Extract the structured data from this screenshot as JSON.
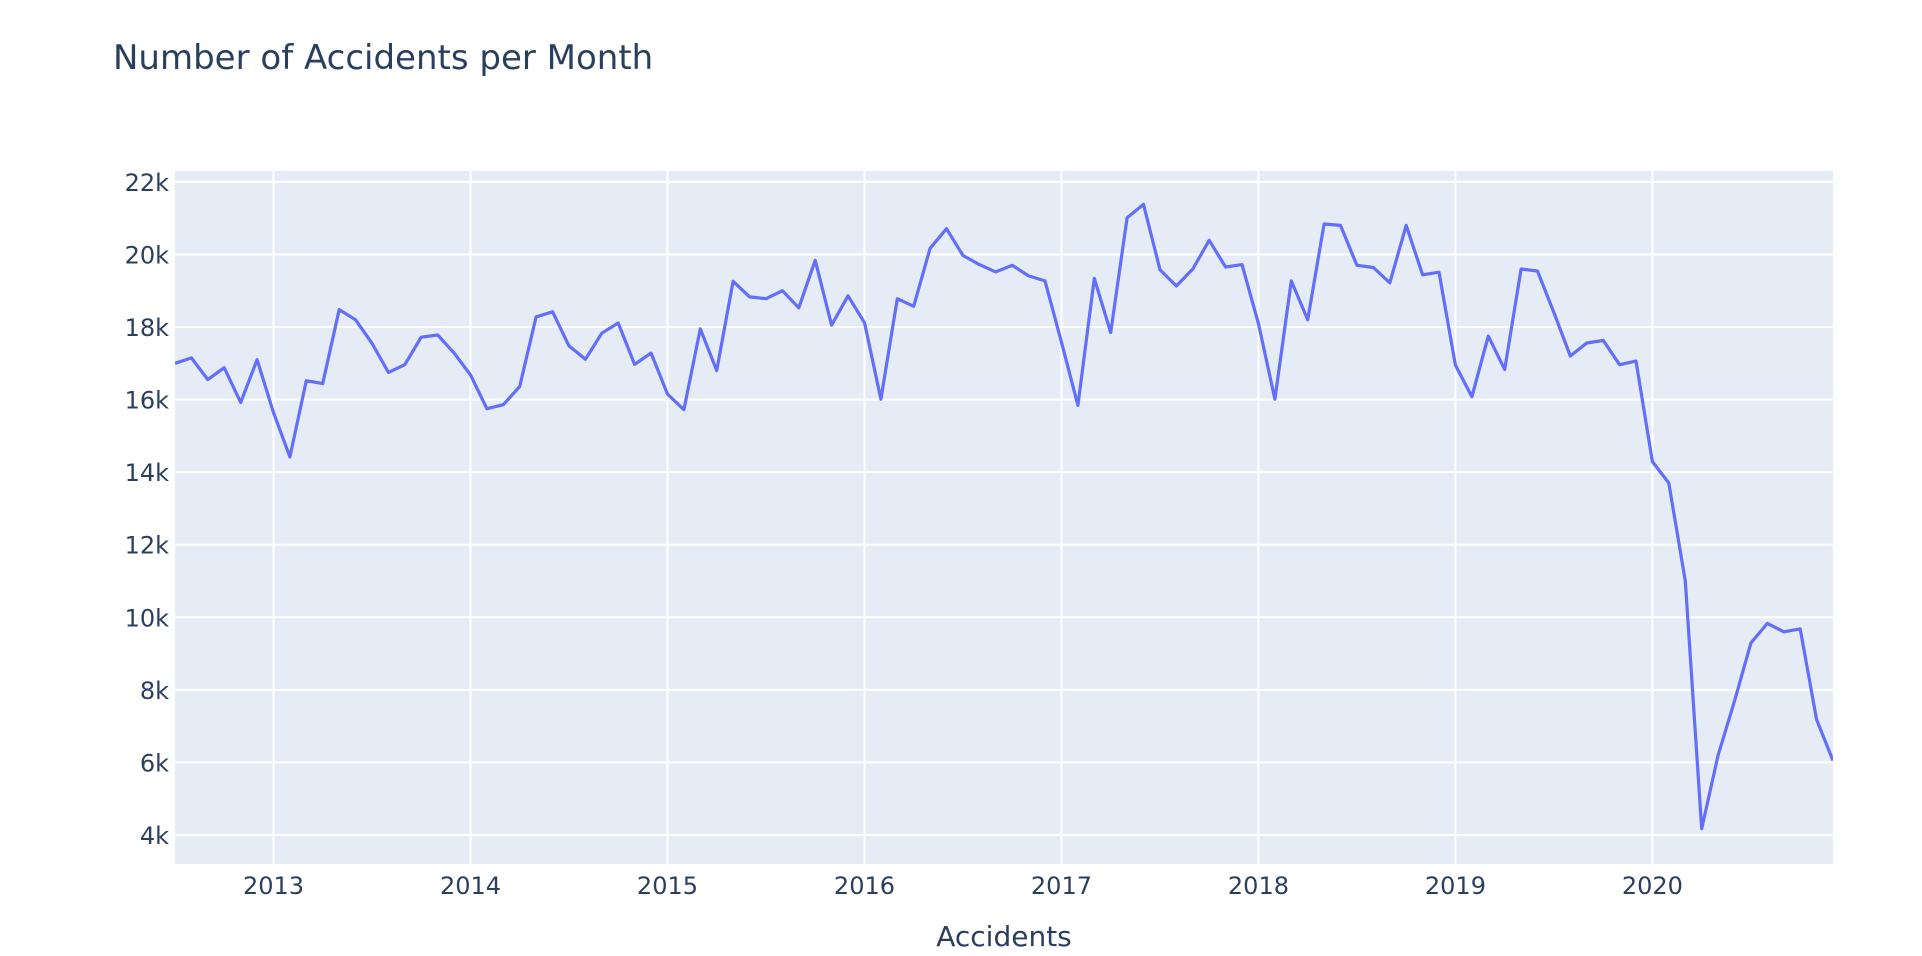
{
  "chart_data": {
    "type": "line",
    "title": "Number of Accidents per Month",
    "xlabel": "Accidents",
    "ylabel": "",
    "ylim": [
      3200,
      22300
    ],
    "xlim": [
      "2012-07-01",
      "2020-12-01"
    ],
    "x_ticks": [
      "2013",
      "2014",
      "2015",
      "2016",
      "2017",
      "2018",
      "2019",
      "2020"
    ],
    "y_ticks": [
      {
        "value": 4000,
        "label": "4k"
      },
      {
        "value": 6000,
        "label": "6k"
      },
      {
        "value": 8000,
        "label": "8k"
      },
      {
        "value": 10000,
        "label": "10k"
      },
      {
        "value": 12000,
        "label": "12k"
      },
      {
        "value": 14000,
        "label": "14k"
      },
      {
        "value": 16000,
        "label": "16k"
      },
      {
        "value": 18000,
        "label": "18k"
      },
      {
        "value": 20000,
        "label": "20k"
      },
      {
        "value": 22000,
        "label": "22k"
      }
    ],
    "grid": true,
    "colors": {
      "line": "#636efa",
      "plot_bg": "#e5ecf6",
      "grid": "#ffffff",
      "text": "#2a3f5f"
    },
    "series": [
      {
        "x": [
          "2012-07",
          "2012-08",
          "2012-09",
          "2012-10",
          "2012-11",
          "2012-12",
          "2013-01",
          "2013-02",
          "2013-03",
          "2013-04",
          "2013-05",
          "2013-06",
          "2013-07",
          "2013-08",
          "2013-09",
          "2013-10",
          "2013-11",
          "2013-12",
          "2014-01",
          "2014-02",
          "2014-03",
          "2014-04",
          "2014-05",
          "2014-06",
          "2014-07",
          "2014-08",
          "2014-09",
          "2014-10",
          "2014-11",
          "2014-12",
          "2015-01",
          "2015-02",
          "2015-03",
          "2015-04",
          "2015-05",
          "2015-06",
          "2015-07",
          "2015-08",
          "2015-09",
          "2015-10",
          "2015-11",
          "2015-12",
          "2016-01",
          "2016-02",
          "2016-03",
          "2016-04",
          "2016-05",
          "2016-06",
          "2016-07",
          "2016-08",
          "2016-09",
          "2016-10",
          "2016-11",
          "2016-12",
          "2017-01",
          "2017-02",
          "2017-03",
          "2017-04",
          "2017-05",
          "2017-06",
          "2017-07",
          "2017-08",
          "2017-09",
          "2017-10",
          "2017-11",
          "2017-12",
          "2018-01",
          "2018-02",
          "2018-03",
          "2018-04",
          "2018-05",
          "2018-06",
          "2018-07",
          "2018-08",
          "2018-09",
          "2018-10",
          "2018-11",
          "2018-12",
          "2019-01",
          "2019-02",
          "2019-03",
          "2019-04",
          "2019-05",
          "2019-06",
          "2019-07",
          "2019-08",
          "2019-09",
          "2019-10",
          "2019-11",
          "2019-12",
          "2020-01",
          "2020-02",
          "2020-03",
          "2020-04",
          "2020-05",
          "2020-06",
          "2020-07",
          "2020-08",
          "2020-09",
          "2020-10",
          "2020-11",
          "2020-12"
        ],
        "y": [
          17000,
          17150,
          16550,
          16880,
          15920,
          17100,
          15640,
          14420,
          16520,
          16440,
          18480,
          18200,
          17550,
          16750,
          16960,
          17720,
          17780,
          17280,
          16680,
          15750,
          15860,
          16360,
          18280,
          18420,
          17480,
          17110,
          17830,
          18110,
          16970,
          17280,
          16150,
          15720,
          17950,
          16800,
          19260,
          18830,
          18780,
          19000,
          18530,
          19840,
          18050,
          18860,
          18120,
          16010,
          18780,
          18570,
          20170,
          20710,
          19970,
          19720,
          19520,
          19700,
          19410,
          19270,
          17580,
          15840,
          19340,
          17850,
          21010,
          21380,
          19580,
          19130,
          19600,
          20390,
          19650,
          19720,
          18100,
          16010,
          19270,
          18200,
          20840,
          20800,
          19700,
          19640,
          19220,
          20800,
          19440,
          19510,
          16950,
          16080,
          17750,
          16830,
          19600,
          19540,
          18400,
          17200,
          17560,
          17630,
          16960,
          17060,
          14290,
          13700,
          11000,
          4170,
          6200,
          7690,
          9290,
          9830,
          9600,
          9680,
          7180,
          6050
        ]
      }
    ]
  }
}
